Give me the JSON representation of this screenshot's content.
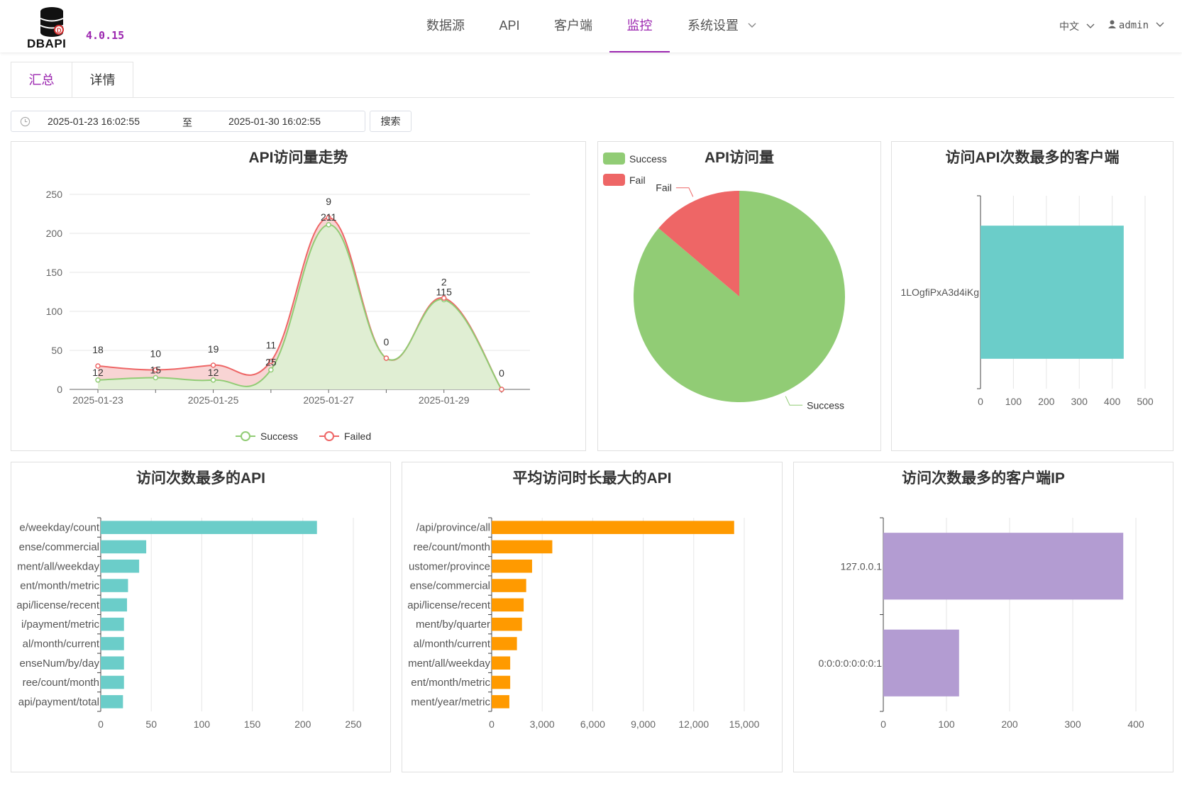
{
  "app": {
    "logo_text": "DBAPI",
    "version": "4.0.15"
  },
  "nav": {
    "items": [
      {
        "label": "数据源"
      },
      {
        "label": "API"
      },
      {
        "label": "客户端"
      },
      {
        "label": "监控"
      },
      {
        "label": "系统设置"
      }
    ],
    "active": "监控",
    "language": "中文",
    "user": "admin"
  },
  "tabs": {
    "summary": "汇总",
    "detail": "详情"
  },
  "filter": {
    "start": "2025-01-23 16:02:55",
    "separator": "至",
    "end": "2025-01-30 16:02:55",
    "search_label": "搜索"
  },
  "colors": {
    "accent": "#9c27b0",
    "success": "#91cc75",
    "fail": "#ee6666",
    "teal": "#6bcdc9",
    "orange": "#ff9a00",
    "purple": "#b39cd2"
  },
  "chart_data": [
    {
      "type": "line",
      "title": "API访问量走势",
      "x": [
        "2025-01-23",
        "2025-01-24",
        "2025-01-25",
        "2025-01-26",
        "2025-01-27",
        "2025-01-28",
        "2025-01-29",
        "2025-01-30"
      ],
      "xticks": [
        "2025-01-23",
        "2025-01-25",
        "2025-01-27",
        "2025-01-29"
      ],
      "series": [
        {
          "name": "Success",
          "values": [
            12,
            15,
            12,
            25,
            211,
            40,
            115,
            0
          ]
        },
        {
          "name": "Failed",
          "values": [
            18,
            10,
            19,
            11,
            9,
            0,
            2,
            0
          ]
        }
      ],
      "point_labels": {
        "success": [
          "12",
          "15",
          "12",
          "25",
          "211",
          "",
          "115",
          ""
        ],
        "failed": [
          "18",
          "10",
          "19",
          "11",
          "9",
          "0",
          "2",
          "0"
        ]
      },
      "ylim": [
        0,
        250
      ],
      "yticks": [
        0,
        50,
        100,
        150,
        200,
        250
      ],
      "grid": true,
      "smooth": true,
      "area": true,
      "legend": "bottom"
    },
    {
      "type": "pie",
      "title": "API访问量",
      "slices": [
        {
          "name": "Success",
          "value": 430
        },
        {
          "name": "Fail",
          "value": 69
        }
      ],
      "legend": "top-left"
    },
    {
      "type": "bar",
      "orientation": "horizontal",
      "title": "访问API次数最多的客户端",
      "categories": [
        "1LOgfiPxA3d4iKg"
      ],
      "values": [
        435
      ],
      "xlim": [
        0,
        500
      ],
      "xticks": [
        0,
        100,
        200,
        300,
        400,
        500
      ]
    },
    {
      "type": "bar",
      "orientation": "horizontal",
      "title": "访问次数最多的API",
      "categories": [
        "e/weekday/count",
        "ense/commercial",
        "ment/all/weekday",
        "ent/month/metric",
        "api/license/recent",
        "i/payment/metric",
        "al/month/current",
        "enseNum/by/day",
        "ree/count/month",
        "api/payment/total"
      ],
      "values": [
        214,
        45,
        38,
        27,
        26,
        23,
        23,
        23,
        23,
        22
      ],
      "xlim": [
        0,
        250
      ],
      "xticks": [
        0,
        50,
        100,
        150,
        200,
        250
      ]
    },
    {
      "type": "bar",
      "orientation": "horizontal",
      "title": "平均访问时长最大的API",
      "categories": [
        "/api/province/all",
        "ree/count/month",
        "ustomer/province",
        "ense/commercial",
        "api/license/recent",
        "ment/by/quarter",
        "al/month/current",
        "ment/all/weekday",
        "ent/month/metric",
        "ment/year/metric"
      ],
      "values": [
        14400,
        3600,
        2400,
        2050,
        1900,
        1800,
        1500,
        1100,
        1100,
        1050
      ],
      "xlim": [
        0,
        15000
      ],
      "xticks": [
        "0",
        "3,000",
        "6,000",
        "9,000",
        "12,000",
        "15,000"
      ]
    },
    {
      "type": "bar",
      "orientation": "horizontal",
      "title": "访问次数最多的客户端IP",
      "categories": [
        "127.0.0.1",
        "0:0:0:0:0:0:0:1"
      ],
      "values": [
        380,
        120
      ],
      "xlim": [
        0,
        400
      ],
      "xticks": [
        0,
        100,
        200,
        300,
        400
      ]
    }
  ]
}
